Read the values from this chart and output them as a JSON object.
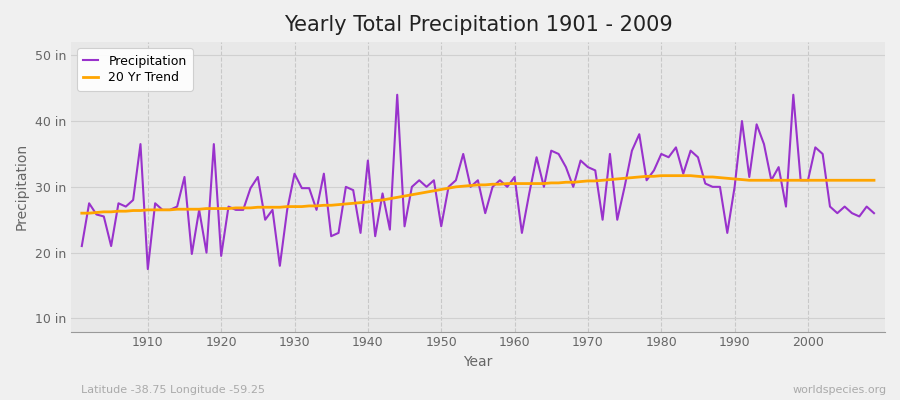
{
  "title": "Yearly Total Precipitation 1901 - 2009",
  "xlabel": "Year",
  "ylabel": "Precipitation",
  "subtitle_left": "Latitude -38.75 Longitude -59.25",
  "subtitle_right": "worldspecies.org",
  "years": [
    1901,
    1902,
    1903,
    1904,
    1905,
    1906,
    1907,
    1908,
    1909,
    1910,
    1911,
    1912,
    1913,
    1914,
    1915,
    1916,
    1917,
    1918,
    1919,
    1920,
    1921,
    1922,
    1923,
    1924,
    1925,
    1926,
    1927,
    1928,
    1929,
    1930,
    1931,
    1932,
    1933,
    1934,
    1935,
    1936,
    1937,
    1938,
    1939,
    1940,
    1941,
    1942,
    1943,
    1944,
    1945,
    1946,
    1947,
    1948,
    1949,
    1950,
    1951,
    1952,
    1953,
    1954,
    1955,
    1956,
    1957,
    1958,
    1959,
    1960,
    1961,
    1962,
    1963,
    1964,
    1965,
    1966,
    1967,
    1968,
    1969,
    1970,
    1971,
    1972,
    1973,
    1974,
    1975,
    1976,
    1977,
    1978,
    1979,
    1980,
    1981,
    1982,
    1983,
    1984,
    1985,
    1986,
    1987,
    1988,
    1989,
    1990,
    1991,
    1992,
    1993,
    1994,
    1995,
    1996,
    1997,
    1998,
    1999,
    2000,
    2001,
    2002,
    2003,
    2004,
    2005,
    2006,
    2007,
    2008,
    2009
  ],
  "precip": [
    21.0,
    27.5,
    25.8,
    25.5,
    21.0,
    27.5,
    27.0,
    28.0,
    36.5,
    17.5,
    27.5,
    26.5,
    26.5,
    27.0,
    31.5,
    19.8,
    26.5,
    20.0,
    36.5,
    19.5,
    27.0,
    26.5,
    26.5,
    29.8,
    31.5,
    25.0,
    26.5,
    18.0,
    26.5,
    32.0,
    29.8,
    29.8,
    26.5,
    32.0,
    22.5,
    23.0,
    30.0,
    29.5,
    23.0,
    34.0,
    22.5,
    29.0,
    23.5,
    44.0,
    24.0,
    30.0,
    31.0,
    30.0,
    31.0,
    24.0,
    30.0,
    31.0,
    35.0,
    30.0,
    31.0,
    26.0,
    30.0,
    31.0,
    30.0,
    31.5,
    23.0,
    29.0,
    34.5,
    30.0,
    35.5,
    35.0,
    33.0,
    30.0,
    34.0,
    33.0,
    32.5,
    25.0,
    35.0,
    25.0,
    30.0,
    35.5,
    38.0,
    31.0,
    32.5,
    35.0,
    34.5,
    36.0,
    32.0,
    35.5,
    34.5,
    30.5,
    30.0,
    30.0,
    23.0,
    30.0,
    40.0,
    31.5,
    39.5,
    36.5,
    31.0,
    33.0,
    27.0,
    44.0,
    31.0,
    31.0,
    36.0,
    35.0,
    27.0,
    26.0,
    27.0,
    26.0,
    25.5,
    27.0,
    26.0
  ],
  "trend": [
    26.0,
    26.0,
    26.1,
    26.2,
    26.2,
    26.3,
    26.3,
    26.4,
    26.4,
    26.5,
    26.5,
    26.5,
    26.5,
    26.6,
    26.6,
    26.6,
    26.6,
    26.7,
    26.7,
    26.7,
    26.7,
    26.8,
    26.8,
    26.8,
    26.9,
    26.9,
    26.9,
    26.9,
    27.0,
    27.0,
    27.0,
    27.1,
    27.1,
    27.2,
    27.2,
    27.3,
    27.4,
    27.5,
    27.6,
    27.7,
    27.9,
    28.0,
    28.2,
    28.4,
    28.6,
    28.8,
    29.0,
    29.2,
    29.4,
    29.6,
    29.8,
    30.0,
    30.1,
    30.2,
    30.3,
    30.3,
    30.4,
    30.4,
    30.5,
    30.5,
    30.5,
    30.5,
    30.5,
    30.5,
    30.6,
    30.6,
    30.7,
    30.7,
    30.8,
    30.9,
    30.9,
    31.0,
    31.1,
    31.2,
    31.3,
    31.4,
    31.5,
    31.6,
    31.6,
    31.7,
    31.7,
    31.7,
    31.7,
    31.7,
    31.6,
    31.5,
    31.5,
    31.4,
    31.3,
    31.2,
    31.1,
    31.0,
    31.0,
    31.0,
    31.0,
    31.0,
    31.0,
    31.0,
    31.0,
    31.0,
    31.0,
    31.0,
    31.0,
    31.0,
    31.0,
    31.0,
    31.0,
    31.0,
    31.0
  ],
  "precip_color": "#9932CC",
  "trend_color": "#FFA500",
  "fig_bg_color": "#f0f0f0",
  "plot_bg_color": "#e8e8e8",
  "grid_color_h": "#d0d0d0",
  "grid_color_v": "#c8c8c8",
  "text_color": "#666666",
  "title_color": "#222222",
  "subtitle_color": "#aaaaaa",
  "ylim": [
    8,
    52
  ],
  "yticks": [
    10,
    20,
    30,
    40,
    50
  ],
  "ytick_labels": [
    "10 in",
    "20 in",
    "30 in",
    "40 in",
    "50 in"
  ],
  "xlim": [
    1899.5,
    2010.5
  ],
  "xticks": [
    1910,
    1920,
    1930,
    1940,
    1950,
    1960,
    1970,
    1980,
    1990,
    2000
  ],
  "title_fontsize": 15,
  "axis_label_fontsize": 10,
  "tick_fontsize": 9,
  "legend_fontsize": 9,
  "linewidth_precip": 1.5,
  "linewidth_trend": 2.0
}
